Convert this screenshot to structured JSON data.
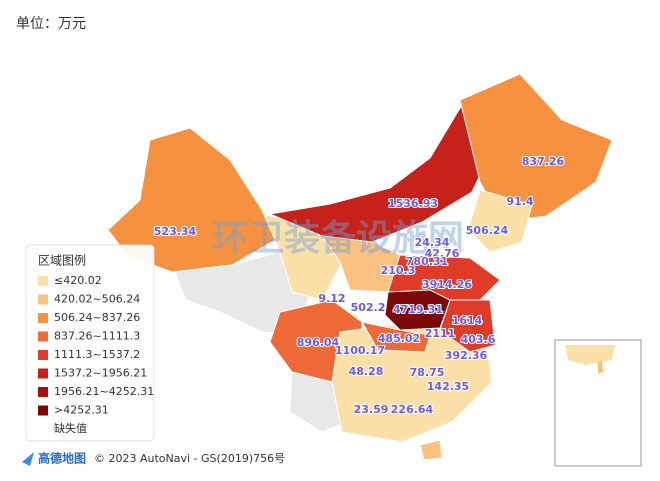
{
  "unit": "单位：万元",
  "watermark": "环卫装备设施网",
  "legend": {
    "title": "区域图例",
    "items": [
      {
        "label": "≤420.02",
        "color": "#fde0a8"
      },
      {
        "label": "420.02~506.24",
        "color": "#fcc17e"
      },
      {
        "label": "506.24~837.26",
        "color": "#f6923f"
      },
      {
        "label": "837.26~1111.3",
        "color": "#ee6b37"
      },
      {
        "label": "1111.3~1537.2",
        "color": "#df3b26"
      },
      {
        "label": "1537.2~1956.21",
        "color": "#c7221a"
      },
      {
        "label": "1956.21~4252.31",
        "color": "#a5120e"
      },
      {
        "label": ">4252.31",
        "color": "#7c0808"
      }
    ],
    "missing": "缺失值"
  },
  "map_labels": [
    523.34,
    837.26,
    91.4,
    1536.93,
    506.24,
    24.34,
    42.76,
    780.31,
    210.3,
    3914.26,
    9.12,
    502.2,
    4719.31,
    1614,
    896.04,
    1100.17,
    485.02,
    2111,
    403.6,
    392.36,
    48.28,
    78.75,
    142.35,
    23.59,
    226.64
  ],
  "logo": "高德地图",
  "attribution": "© 2023 AutoNavi - GS(2019)756号"
}
